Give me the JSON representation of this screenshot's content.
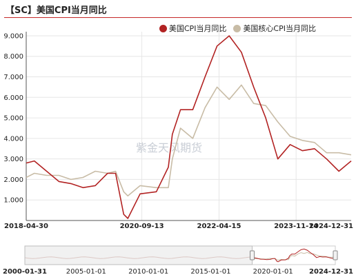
{
  "title": "【SC】美国CPI当月同比",
  "watermark": "紫金天风期货",
  "colors": {
    "cpi": "#b22222",
    "core": "#c8bca6",
    "title_rule": "#c62828"
  },
  "chart_data": {
    "type": "line",
    "title": "【SC】美国CPI当月同比",
    "xlabel": "",
    "ylabel": "",
    "ylim": [
      0,
      9.2
    ],
    "yticks": [
      "1.000",
      "2.000",
      "3.000",
      "4.000",
      "5.000",
      "6.000",
      "7.000",
      "8.000",
      "9.000"
    ],
    "ytick_values": [
      1,
      2,
      3,
      4,
      5,
      6,
      7,
      8,
      9
    ],
    "xlim": [
      "2018-04-30",
      "2024-12-31"
    ],
    "xticks": [
      "2018-04-30",
      "2020-09-13",
      "2022-04-15",
      "2023-11-14",
      "2024-12-31"
    ],
    "grid": true,
    "legend_position": "top-right",
    "series": [
      {
        "name": "美国CPI当月同比",
        "color": "#b22222",
        "x": [
          "2018-04-30",
          "2018-06-30",
          "2018-09-30",
          "2018-12-31",
          "2019-03-31",
          "2019-06-30",
          "2019-09-30",
          "2019-12-31",
          "2020-02-29",
          "2020-04-30",
          "2020-05-31",
          "2020-08-31",
          "2020-12-31",
          "2021-03-31",
          "2021-04-30",
          "2021-06-30",
          "2021-09-30",
          "2021-12-31",
          "2022-03-31",
          "2022-06-30",
          "2022-09-30",
          "2022-12-31",
          "2023-03-31",
          "2023-06-30",
          "2023-09-30",
          "2023-12-31",
          "2024-03-31",
          "2024-06-30",
          "2024-09-30",
          "2024-12-31"
        ],
        "values": [
          2.8,
          2.9,
          2.4,
          1.9,
          1.8,
          1.6,
          1.7,
          2.3,
          2.3,
          0.3,
          0.1,
          1.3,
          1.4,
          2.6,
          4.2,
          5.4,
          5.4,
          7.0,
          8.5,
          9.0,
          8.2,
          6.5,
          5.0,
          3.0,
          3.7,
          3.4,
          3.5,
          3.0,
          2.4,
          2.9
        ]
      },
      {
        "name": "美国核心CPI当月同比",
        "color": "#c8bca6",
        "x": [
          "2018-04-30",
          "2018-06-30",
          "2018-09-30",
          "2018-12-31",
          "2019-03-31",
          "2019-06-30",
          "2019-09-30",
          "2019-12-31",
          "2020-02-29",
          "2020-04-30",
          "2020-05-31",
          "2020-08-31",
          "2020-12-31",
          "2021-03-31",
          "2021-04-30",
          "2021-06-30",
          "2021-09-30",
          "2021-12-31",
          "2022-03-31",
          "2022-06-30",
          "2022-09-30",
          "2022-12-31",
          "2023-03-31",
          "2023-06-30",
          "2023-09-30",
          "2023-12-31",
          "2024-03-31",
          "2024-06-30",
          "2024-09-30",
          "2024-12-31"
        ],
        "values": [
          2.1,
          2.3,
          2.2,
          2.2,
          2.0,
          2.1,
          2.4,
          2.3,
          2.4,
          1.4,
          1.2,
          1.7,
          1.6,
          1.6,
          3.0,
          4.5,
          4.0,
          5.5,
          6.5,
          5.9,
          6.6,
          5.7,
          5.6,
          4.8,
          4.1,
          3.9,
          3.8,
          3.3,
          3.3,
          3.2
        ]
      }
    ],
    "navigator": {
      "xticks": [
        "2000-01-31",
        "2005-01-01",
        "2010-01-01",
        "2015-01-01",
        "2020-01-01",
        "2024-12-31"
      ]
    }
  }
}
